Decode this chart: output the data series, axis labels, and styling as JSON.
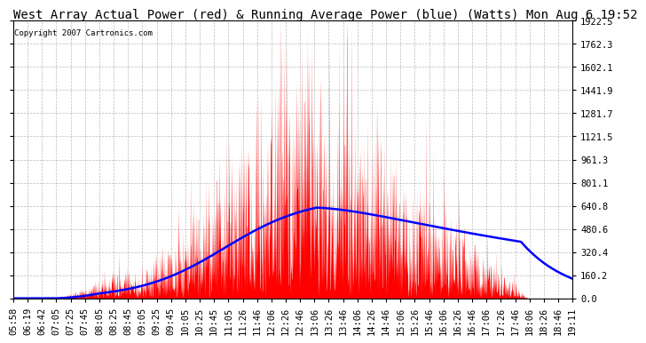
{
  "title": "West Array Actual Power (red) & Running Average Power (blue) (Watts) Mon Aug 6 19:52",
  "copyright": "Copyright 2007 Cartronics.com",
  "ylabel_right": [
    "0.0",
    "160.2",
    "320.4",
    "480.6",
    "640.8",
    "801.1",
    "961.3",
    "1121.5",
    "1281.7",
    "1441.9",
    "1602.1",
    "1762.3",
    "1922.5"
  ],
  "ymax": 1922.5,
  "ymin": 0.0,
  "yticks": [
    0.0,
    160.2,
    320.4,
    480.6,
    640.8,
    801.1,
    961.3,
    1121.5,
    1281.7,
    1441.9,
    1602.1,
    1762.3,
    1922.5
  ],
  "xtick_labels": [
    "05:58",
    "06:19",
    "06:42",
    "07:05",
    "07:25",
    "07:45",
    "08:05",
    "08:25",
    "08:45",
    "09:05",
    "09:25",
    "09:45",
    "10:05",
    "10:25",
    "10:45",
    "11:05",
    "11:26",
    "11:46",
    "12:06",
    "12:26",
    "12:46",
    "13:06",
    "13:26",
    "13:46",
    "14:06",
    "14:26",
    "14:46",
    "15:06",
    "15:26",
    "15:46",
    "16:06",
    "16:26",
    "16:46",
    "17:06",
    "17:26",
    "17:46",
    "18:06",
    "18:26",
    "18:46",
    "19:11"
  ],
  "background_color": "#ffffff",
  "plot_bg_color": "#ffffff",
  "grid_color": "#aaaaaa",
  "red_color": "#ff0000",
  "blue_color": "#0000ff",
  "title_fontsize": 10,
  "tick_fontsize": 7.5
}
